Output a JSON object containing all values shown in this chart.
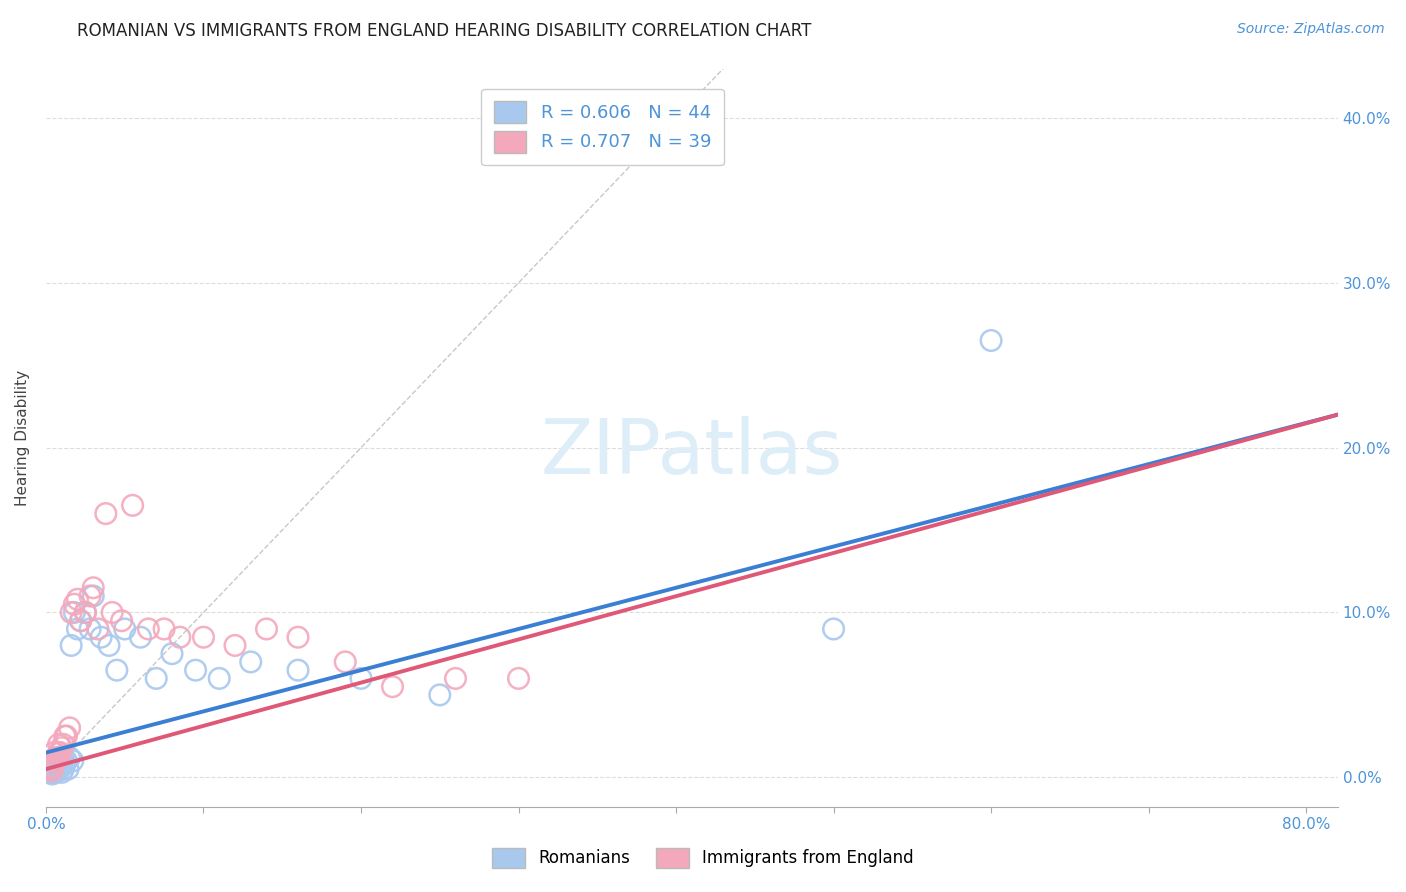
{
  "title": "ROMANIAN VS IMMIGRANTS FROM ENGLAND HEARING DISABILITY CORRELATION CHART",
  "source": "Source: ZipAtlas.com",
  "ylabel": "Hearing Disability",
  "xlim": [
    0.0,
    0.82
  ],
  "ylim": [
    -0.018,
    0.43
  ],
  "watermark": "ZIPatlas",
  "legend_entries": [
    {
      "label": "R = 0.606   N = 44",
      "color": "#a8c8ee"
    },
    {
      "label": "R = 0.707   N = 39",
      "color": "#f4a8bc"
    }
  ],
  "legend_bottom": [
    {
      "label": "Romanians",
      "color": "#a8c8ee"
    },
    {
      "label": "Immigrants from England",
      "color": "#f4a8bc"
    }
  ],
  "blue_scatter_x": [
    0.001,
    0.002,
    0.003,
    0.004,
    0.005,
    0.005,
    0.006,
    0.007,
    0.007,
    0.008,
    0.008,
    0.009,
    0.009,
    0.01,
    0.01,
    0.011,
    0.011,
    0.012,
    0.013,
    0.014,
    0.015,
    0.016,
    0.017,
    0.018,
    0.02,
    0.022,
    0.025,
    0.028,
    0.03,
    0.035,
    0.04,
    0.045,
    0.05,
    0.06,
    0.07,
    0.08,
    0.095,
    0.11,
    0.13,
    0.16,
    0.2,
    0.25,
    0.6,
    0.5
  ],
  "blue_scatter_y": [
    0.005,
    0.003,
    0.004,
    0.002,
    0.005,
    0.008,
    0.003,
    0.006,
    0.01,
    0.004,
    0.012,
    0.006,
    0.008,
    0.003,
    0.01,
    0.005,
    0.012,
    0.008,
    0.01,
    0.005,
    0.012,
    0.08,
    0.01,
    0.1,
    0.09,
    0.095,
    0.1,
    0.09,
    0.11,
    0.085,
    0.08,
    0.065,
    0.09,
    0.085,
    0.06,
    0.075,
    0.065,
    0.06,
    0.07,
    0.065,
    0.06,
    0.05,
    0.265,
    0.09
  ],
  "pink_scatter_x": [
    0.001,
    0.002,
    0.003,
    0.004,
    0.005,
    0.005,
    0.006,
    0.007,
    0.008,
    0.008,
    0.009,
    0.01,
    0.011,
    0.012,
    0.013,
    0.015,
    0.016,
    0.018,
    0.02,
    0.022,
    0.025,
    0.028,
    0.03,
    0.033,
    0.038,
    0.042,
    0.048,
    0.055,
    0.065,
    0.075,
    0.085,
    0.1,
    0.12,
    0.14,
    0.16,
    0.19,
    0.22,
    0.26,
    0.3
  ],
  "pink_scatter_y": [
    0.008,
    0.005,
    0.006,
    0.004,
    0.01,
    0.015,
    0.01,
    0.012,
    0.015,
    0.02,
    0.015,
    0.018,
    0.02,
    0.025,
    0.025,
    0.03,
    0.1,
    0.105,
    0.108,
    0.095,
    0.1,
    0.11,
    0.115,
    0.09,
    0.16,
    0.1,
    0.095,
    0.165,
    0.09,
    0.09,
    0.085,
    0.085,
    0.08,
    0.09,
    0.085,
    0.07,
    0.055,
    0.06,
    0.06
  ],
  "blue_line_x": [
    0.0,
    0.82
  ],
  "blue_line_y": [
    0.015,
    0.22
  ],
  "pink_line_x": [
    0.0,
    0.82
  ],
  "pink_line_y": [
    0.005,
    0.22
  ],
  "diagonal_line_x": [
    0.0,
    0.43
  ],
  "diagonal_line_y": [
    0.0,
    0.43
  ],
  "blue_color": "#3a7fd4",
  "pink_color": "#e05878",
  "blue_scatter_color": "#a8c8ee",
  "pink_scatter_color": "#f4a8bc",
  "diagonal_color": "#c8c8c8",
  "grid_color": "#dddddd",
  "title_fontsize": 12,
  "source_fontsize": 10,
  "watermark_fontsize": 55,
  "watermark_color": "#ddeef8",
  "tick_label_color": "#4d94d8"
}
